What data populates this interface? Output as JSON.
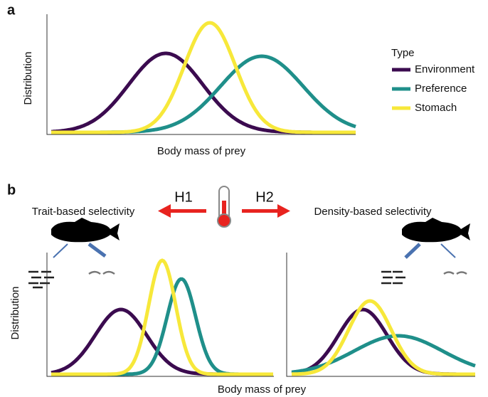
{
  "panel_a": {
    "label": "a",
    "y_axis": "Distribution",
    "x_axis": "Body mass of prey",
    "legend_title": "Type",
    "legend": [
      {
        "name": "Environment",
        "color": "#3b0b4f"
      },
      {
        "name": "Preference",
        "color": "#1f8f8a"
      },
      {
        "name": "Stomach",
        "color": "#f7e83a"
      }
    ]
  },
  "panel_b": {
    "label": "b",
    "h1": "H1",
    "h2": "H2",
    "left_title": "Trait-based selectivity",
    "right_title": "Density-based selectivity",
    "y_axis": "Distribution",
    "x_axis": "Body mass of prey"
  }
}
